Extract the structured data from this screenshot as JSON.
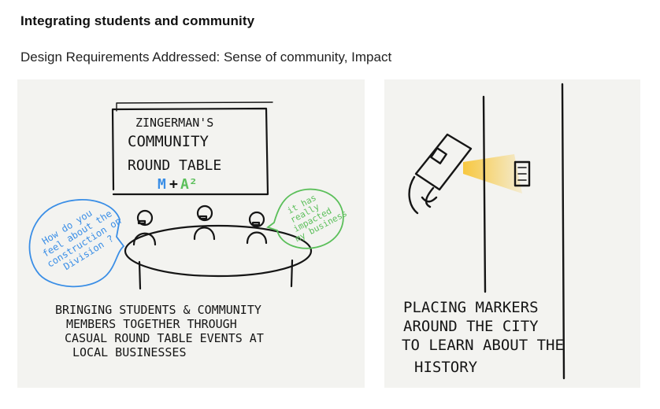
{
  "header": {
    "title": "Integrating students and community",
    "subtitle": "Design Requirements Addressed: Sense of community, Impact"
  },
  "left_panel": {
    "sign_line1": "ZINGERMAN'S",
    "sign_line2": "COMMUNITY",
    "sign_line3": "ROUND TABLE",
    "sign_logo_m": "M",
    "sign_logo_plus": "+",
    "sign_logo_a": "A²",
    "bubble_blue": [
      "How do you",
      "feel about the",
      "construction on",
      "Division ?"
    ],
    "bubble_green": [
      "it has",
      "really",
      "impacted",
      "my business"
    ],
    "caption": [
      "BRINGING STUDENTS & COMMUNITY",
      "MEMBERS TOGETHER THROUGH",
      "CASUAL ROUND TABLE EVENTS AT",
      "LOCAL BUSINESSES"
    ],
    "colors": {
      "blue": "#3a8ee6",
      "green": "#5bbf5a",
      "ink": "#151515"
    }
  },
  "right_panel": {
    "caption": [
      "PLACING MARKERS",
      "AROUND THE CITY",
      "TO LEARN ABOUT THE",
      "HISTORY"
    ],
    "colors": {
      "beam": "#f8c020",
      "ink": "#151515"
    }
  }
}
